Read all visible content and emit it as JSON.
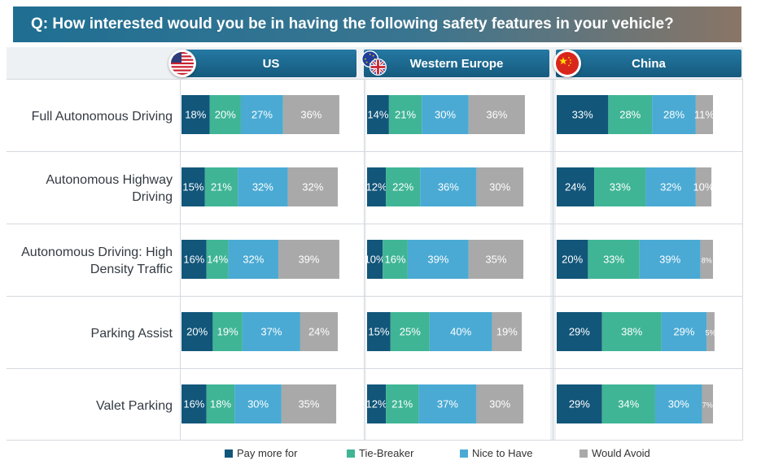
{
  "title": "Q: How interested would you be in having the following safety features in your vehicle?",
  "regions": [
    {
      "name": "US",
      "flag_icon": "us-flag-icon"
    },
    {
      "name": "Western Europe",
      "flag_icon": "eu-uk-flag-icon"
    },
    {
      "name": "China",
      "flag_icon": "china-flag-icon"
    }
  ],
  "colors": {
    "pay_more": "#12567a",
    "tie_breaker": "#3fb596",
    "nice_to_have": "#4aaad4",
    "would_avoid": "#a9a9a9"
  },
  "legend": [
    "Pay more for",
    "Tie-Breaker",
    "Nice to Have",
    "Would Avoid"
  ],
  "chart_data": {
    "type": "bar",
    "orientation": "horizontal",
    "stacked": true,
    "categories": [
      "Full Autonomous Driving",
      "Autonomous Highway Driving",
      "Autonomous Driving: High Density Traffic",
      "Parking Assist",
      "Valet Parking"
    ],
    "series_names": [
      "Pay more for",
      "Tie-Breaker",
      "Nice to Have",
      "Would Avoid"
    ],
    "panels": [
      {
        "region": "US",
        "values": [
          [
            18,
            20,
            27,
            36
          ],
          [
            15,
            21,
            32,
            32
          ],
          [
            16,
            14,
            32,
            39
          ],
          [
            20,
            19,
            37,
            24
          ],
          [
            16,
            18,
            30,
            35
          ]
        ]
      },
      {
        "region": "Western Europe",
        "values": [
          [
            14,
            21,
            30,
            36
          ],
          [
            12,
            22,
            36,
            30
          ],
          [
            10,
            16,
            39,
            35
          ],
          [
            15,
            25,
            40,
            19
          ],
          [
            12,
            21,
            37,
            30
          ]
        ]
      },
      {
        "region": "China",
        "values": [
          [
            33,
            28,
            28,
            11
          ],
          [
            24,
            33,
            32,
            10
          ],
          [
            20,
            33,
            39,
            8
          ],
          [
            29,
            38,
            29,
            5
          ],
          [
            29,
            34,
            30,
            7
          ]
        ]
      }
    ],
    "value_format": "percent",
    "legend_position": "bottom"
  }
}
